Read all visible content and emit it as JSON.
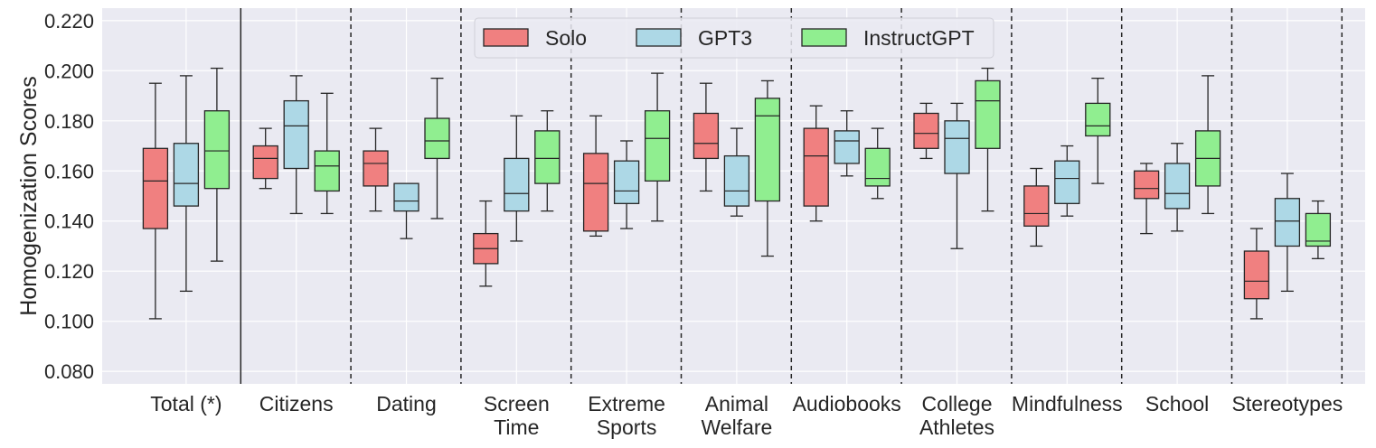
{
  "chart_data": {
    "type": "boxplot",
    "ylabel": "Homogenization Scores",
    "ylim": [
      0.075,
      0.225
    ],
    "yticks": [
      "0.080",
      "0.100",
      "0.120",
      "0.140",
      "0.160",
      "0.180",
      "0.200",
      "0.220"
    ],
    "grid": true,
    "legend_position": "top-center",
    "series_names": [
      "Solo",
      "GPT3",
      "InstructGPT"
    ],
    "colors": {
      "Solo": "#f08080",
      "GPT3": "#add8e6",
      "InstructGPT": "#90ee90"
    },
    "categories": [
      {
        "label": [
          "Total (*)"
        ],
        "boxes": [
          {
            "series": "Solo",
            "whislo": 0.101,
            "q1": 0.137,
            "med": 0.156,
            "q3": 0.169,
            "whishi": 0.195
          },
          {
            "series": "GPT3",
            "whislo": 0.112,
            "q1": 0.146,
            "med": 0.155,
            "q3": 0.171,
            "whishi": 0.198
          },
          {
            "series": "InstructGPT",
            "whislo": 0.124,
            "q1": 0.153,
            "med": 0.168,
            "q3": 0.184,
            "whishi": 0.201
          }
        ]
      },
      {
        "label": [
          "Citizens"
        ],
        "boxes": [
          {
            "series": "Solo",
            "whislo": 0.153,
            "q1": 0.157,
            "med": 0.165,
            "q3": 0.17,
            "whishi": 0.177
          },
          {
            "series": "GPT3",
            "whislo": 0.143,
            "q1": 0.161,
            "med": 0.178,
            "q3": 0.188,
            "whishi": 0.198
          },
          {
            "series": "InstructGPT",
            "whislo": 0.143,
            "q1": 0.152,
            "med": 0.162,
            "q3": 0.168,
            "whishi": 0.191
          }
        ]
      },
      {
        "label": [
          "Dating"
        ],
        "boxes": [
          {
            "series": "Solo",
            "whislo": 0.144,
            "q1": 0.154,
            "med": 0.163,
            "q3": 0.168,
            "whishi": 0.177
          },
          {
            "series": "GPT3",
            "whislo": 0.133,
            "q1": 0.144,
            "med": 0.148,
            "q3": 0.155,
            "whishi": 0.155
          },
          {
            "series": "InstructGPT",
            "whislo": 0.141,
            "q1": 0.165,
            "med": 0.172,
            "q3": 0.181,
            "whishi": 0.197
          }
        ]
      },
      {
        "label": [
          "Screen",
          "Time"
        ],
        "boxes": [
          {
            "series": "Solo",
            "whislo": 0.114,
            "q1": 0.123,
            "med": 0.129,
            "q3": 0.135,
            "whishi": 0.148
          },
          {
            "series": "GPT3",
            "whislo": 0.132,
            "q1": 0.144,
            "med": 0.151,
            "q3": 0.165,
            "whishi": 0.182
          },
          {
            "series": "InstructGPT",
            "whislo": 0.144,
            "q1": 0.155,
            "med": 0.165,
            "q3": 0.176,
            "whishi": 0.184
          }
        ]
      },
      {
        "label": [
          "Extreme",
          "Sports"
        ],
        "boxes": [
          {
            "series": "Solo",
            "whislo": 0.134,
            "q1": 0.136,
            "med": 0.155,
            "q3": 0.167,
            "whishi": 0.182
          },
          {
            "series": "GPT3",
            "whislo": 0.137,
            "q1": 0.147,
            "med": 0.152,
            "q3": 0.164,
            "whishi": 0.172
          },
          {
            "series": "InstructGPT",
            "whislo": 0.14,
            "q1": 0.156,
            "med": 0.173,
            "q3": 0.184,
            "whishi": 0.199
          }
        ]
      },
      {
        "label": [
          "Animal",
          "Welfare"
        ],
        "boxes": [
          {
            "series": "Solo",
            "whislo": 0.152,
            "q1": 0.165,
            "med": 0.171,
            "q3": 0.183,
            "whishi": 0.195
          },
          {
            "series": "GPT3",
            "whislo": 0.142,
            "q1": 0.146,
            "med": 0.152,
            "q3": 0.166,
            "whishi": 0.177
          },
          {
            "series": "InstructGPT",
            "whislo": 0.126,
            "q1": 0.148,
            "med": 0.182,
            "q3": 0.189,
            "whishi": 0.196
          }
        ]
      },
      {
        "label": [
          "Audiobooks"
        ],
        "boxes": [
          {
            "series": "Solo",
            "whislo": 0.14,
            "q1": 0.146,
            "med": 0.166,
            "q3": 0.177,
            "whishi": 0.186
          },
          {
            "series": "GPT3",
            "whislo": 0.158,
            "q1": 0.163,
            "med": 0.172,
            "q3": 0.176,
            "whishi": 0.184
          },
          {
            "series": "InstructGPT",
            "whislo": 0.149,
            "q1": 0.154,
            "med": 0.157,
            "q3": 0.169,
            "whishi": 0.177
          }
        ]
      },
      {
        "label": [
          "College",
          "Athletes"
        ],
        "boxes": [
          {
            "series": "Solo",
            "whislo": 0.165,
            "q1": 0.169,
            "med": 0.175,
            "q3": 0.183,
            "whishi": 0.187
          },
          {
            "series": "GPT3",
            "whislo": 0.129,
            "q1": 0.159,
            "med": 0.173,
            "q3": 0.18,
            "whishi": 0.187
          },
          {
            "series": "InstructGPT",
            "whislo": 0.144,
            "q1": 0.169,
            "med": 0.188,
            "q3": 0.196,
            "whishi": 0.201
          }
        ]
      },
      {
        "label": [
          "Mindfulness"
        ],
        "boxes": [
          {
            "series": "Solo",
            "whislo": 0.13,
            "q1": 0.138,
            "med": 0.143,
            "q3": 0.154,
            "whishi": 0.161
          },
          {
            "series": "GPT3",
            "whislo": 0.142,
            "q1": 0.147,
            "med": 0.157,
            "q3": 0.164,
            "whishi": 0.17
          },
          {
            "series": "InstructGPT",
            "whislo": 0.155,
            "q1": 0.174,
            "med": 0.178,
            "q3": 0.187,
            "whishi": 0.197
          }
        ]
      },
      {
        "label": [
          "School"
        ],
        "boxes": [
          {
            "series": "Solo",
            "whislo": 0.135,
            "q1": 0.149,
            "med": 0.153,
            "q3": 0.16,
            "whishi": 0.163
          },
          {
            "series": "GPT3",
            "whislo": 0.136,
            "q1": 0.145,
            "med": 0.151,
            "q3": 0.163,
            "whishi": 0.171
          },
          {
            "series": "InstructGPT",
            "whislo": 0.143,
            "q1": 0.154,
            "med": 0.165,
            "q3": 0.176,
            "whishi": 0.198
          }
        ]
      },
      {
        "label": [
          "Stereotypes"
        ],
        "boxes": [
          {
            "series": "Solo",
            "whislo": 0.101,
            "q1": 0.109,
            "med": 0.116,
            "q3": 0.128,
            "whishi": 0.137
          },
          {
            "series": "GPT3",
            "whislo": 0.112,
            "q1": 0.13,
            "med": 0.14,
            "q3": 0.149,
            "whishi": 0.159
          },
          {
            "series": "InstructGPT",
            "whislo": 0.125,
            "q1": 0.13,
            "med": 0.132,
            "q3": 0.143,
            "whishi": 0.148
          }
        ]
      }
    ]
  }
}
